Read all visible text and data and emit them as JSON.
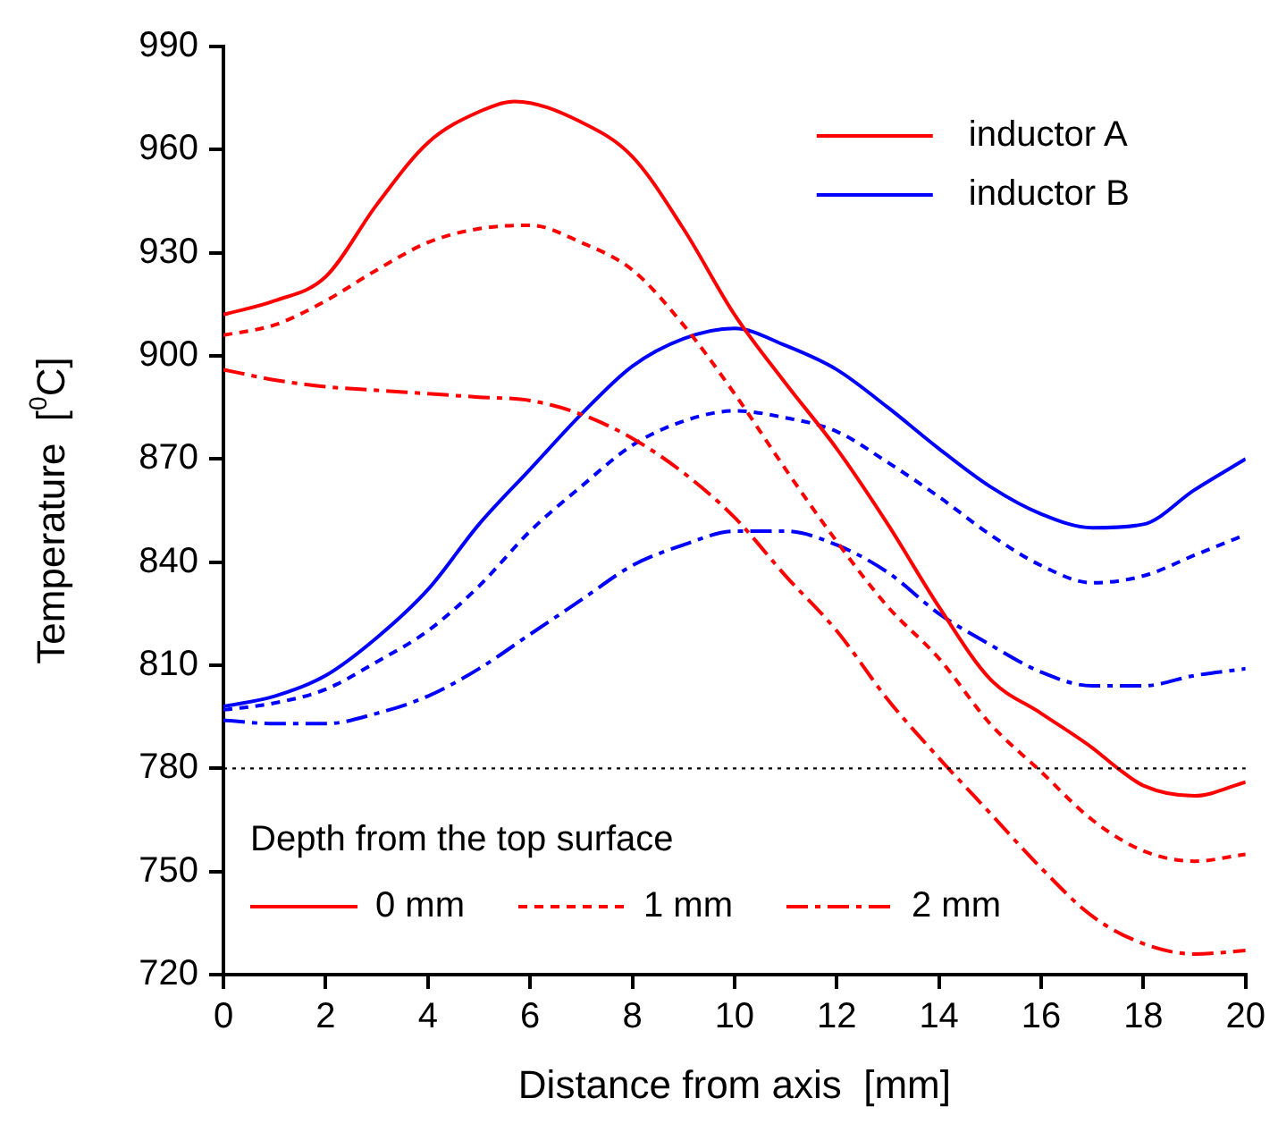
{
  "chart_data": {
    "type": "line",
    "xlabel": "Distance from axis  [mm]",
    "ylabel": "Temperature  [$^{0}$C]",
    "x": [
      0,
      1,
      2,
      3,
      4,
      5,
      6,
      7,
      8,
      9,
      10,
      11,
      12,
      13,
      14,
      15,
      16,
      17,
      18,
      19,
      20
    ],
    "xlim": [
      0,
      20
    ],
    "xticks": [
      0,
      2,
      4,
      6,
      8,
      10,
      12,
      14,
      16,
      18,
      20
    ],
    "ylim": [
      720,
      990
    ],
    "yticks": [
      720,
      750,
      780,
      810,
      840,
      870,
      900,
      930,
      960,
      990
    ],
    "grid": false,
    "legend": "bottom left",
    "legend_title": "Depth from the top surface",
    "marker": "none",
    "series": [
      {
        "name": "0 mm",
        "color": "#ff0000",
        "line_style": "solid",
        "x": [
          0,
          1,
          2,
          3,
          4,
          5,
          5.7,
          7,
          8,
          9,
          10,
          11,
          12,
          13,
          14,
          15,
          16,
          17,
          17.5,
          18,
          19,
          20
        ],
        "values": [
          912,
          916,
          923,
          944,
          962,
          971,
          974,
          968,
          958,
          937,
          912,
          892,
          873,
          851,
          827,
          806,
          796,
          786,
          780,
          775,
          772,
          776
        ]
      },
      {
        "name": "1 mm",
        "color": "#ff0000",
        "line_style": "dashed",
        "values": [
          906,
          909,
          916,
          925,
          933,
          937,
          938,
          933,
          925,
          909,
          889,
          867,
          846,
          827,
          812,
          793,
          779,
          765,
          756,
          753,
          755
        ]
      },
      {
        "name": "2 mm",
        "color": "#ff0000",
        "line_style": "dash-dot",
        "values": [
          896,
          893,
          891,
          890,
          889,
          888,
          887,
          883,
          876,
          866,
          853,
          836,
          820,
          800,
          783,
          767,
          751,
          737,
          729,
          726,
          727
        ]
      },
      {
        "color": "#0000ff",
        "line_style": "solid",
        "values": [
          798,
          801,
          807,
          818,
          832,
          851,
          867,
          883,
          897,
          905,
          908,
          903,
          896,
          885,
          873,
          862,
          854,
          850,
          851,
          861,
          870
        ]
      },
      {
        "color": "#0000ff",
        "line_style": "dashed",
        "values": [
          797,
          799,
          803,
          811,
          820,
          833,
          849,
          862,
          874,
          881,
          884,
          882,
          878,
          869,
          859,
          848,
          839,
          834,
          836,
          842,
          848
        ]
      },
      {
        "color": "#0000ff",
        "line_style": "dash-dot",
        "values": [
          794,
          793,
          793,
          796,
          801,
          809,
          819,
          829,
          839,
          845,
          849,
          849,
          845,
          837,
          825,
          816,
          808,
          804,
          804,
          807,
          809
        ]
      }
    ],
    "ref_lines": [
      {
        "axis": "y",
        "value": 780,
        "color": "#000000",
        "line_style": "dotted"
      }
    ],
    "annotations": [
      "inductor A",
      "inductor B"
    ]
  }
}
